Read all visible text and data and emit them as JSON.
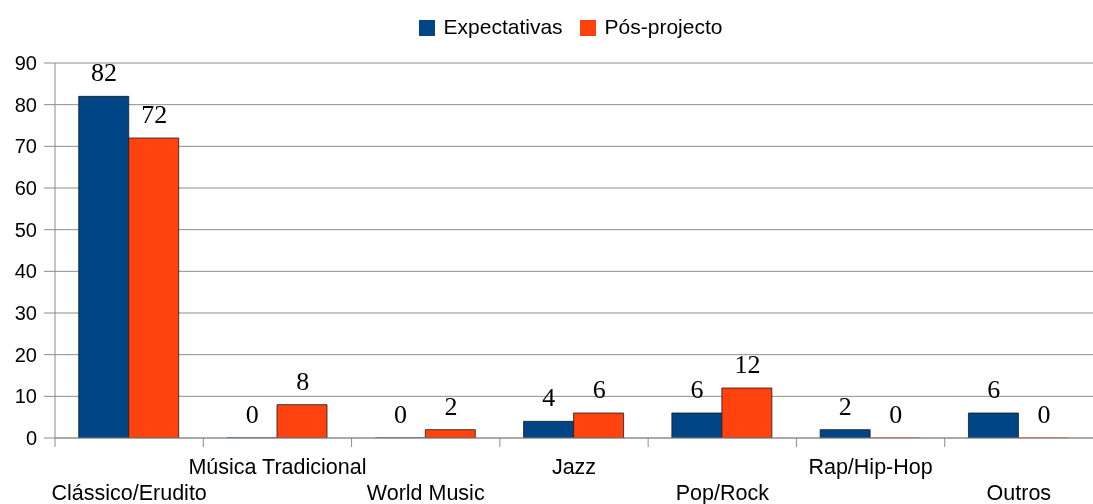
{
  "chart_data": {
    "type": "bar",
    "categories": [
      "Clássico/Erudito",
      "Música Tradicional",
      "World Music",
      "Jazz",
      "Pop/Rock",
      "Rap/Hip-Hop",
      "Outros"
    ],
    "series": [
      {
        "name": "Expectativas",
        "color": "#004586",
        "values": [
          82,
          0,
          0,
          4,
          6,
          2,
          6
        ]
      },
      {
        "name": "Pós-projecto",
        "color": "#ff420e",
        "values": [
          72,
          8,
          2,
          6,
          12,
          0,
          0
        ]
      }
    ],
    "ylim": [
      0,
      90
    ],
    "yticks": [
      0,
      10,
      20,
      30,
      40,
      50,
      60,
      70,
      80,
      90
    ],
    "grid": "y",
    "legend": "top",
    "data_labels": true
  }
}
